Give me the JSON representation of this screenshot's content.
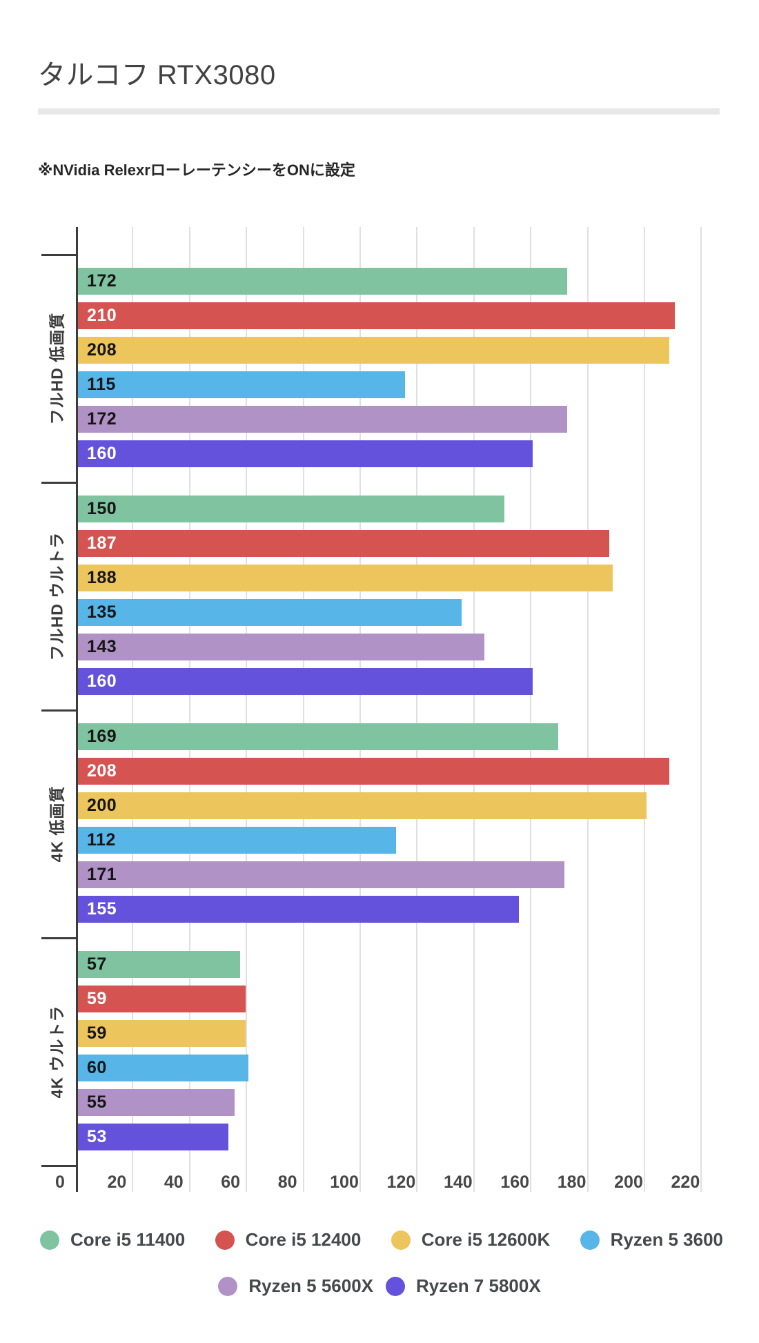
{
  "page": {
    "title": "タルコフ RTX3080",
    "subtitle": "※NVidia RelexrローレーテンシーをONに設定"
  },
  "chart_data": {
    "type": "bar",
    "orientation": "horizontal",
    "title": "タルコフ RTX3080",
    "xlabel": "",
    "ylabel": "",
    "grid": true,
    "legend_position": "bottom",
    "categories": [
      "フルHD 低画質",
      "フルHD ウルトラ",
      "4K 低画質",
      "4K ウルトラ"
    ],
    "series": [
      {
        "name": "Core i5 11400",
        "color": "#80c3a1",
        "label_color": "#161616",
        "values": [
          172,
          150,
          169,
          57
        ]
      },
      {
        "name": "Core i5 12400",
        "color": "#d55452",
        "label_color": "#ffffff",
        "values": [
          210,
          187,
          208,
          59
        ]
      },
      {
        "name": "Core i5 12600K",
        "color": "#edc55d",
        "label_color": "#161616",
        "values": [
          208,
          188,
          200,
          59
        ]
      },
      {
        "name": "Ryzen 5 3600",
        "color": "#57b5e7",
        "label_color": "#161616",
        "values": [
          115,
          135,
          112,
          60
        ]
      },
      {
        "name": "Ryzen 5 5600X",
        "color": "#b092c6",
        "label_color": "#161616",
        "values": [
          172,
          143,
          171,
          55
        ]
      },
      {
        "name": "Ryzen 7 5800X",
        "color": "#6452dc",
        "label_color": "#ffffff",
        "values": [
          160,
          160,
          155,
          53
        ]
      }
    ],
    "x_axis": {
      "ticks": [
        0,
        20,
        40,
        60,
        80,
        100,
        120,
        140,
        160,
        180,
        200,
        220
      ],
      "min": 0,
      "max": 227
    },
    "colors": {
      "gridline": "#e0e0e0",
      "axis": "#3c3c3c",
      "tick_label": "#474747",
      "category_label": "#3a3a3a",
      "legend_text": "#46494c",
      "divider": "#e8e8e8"
    }
  }
}
